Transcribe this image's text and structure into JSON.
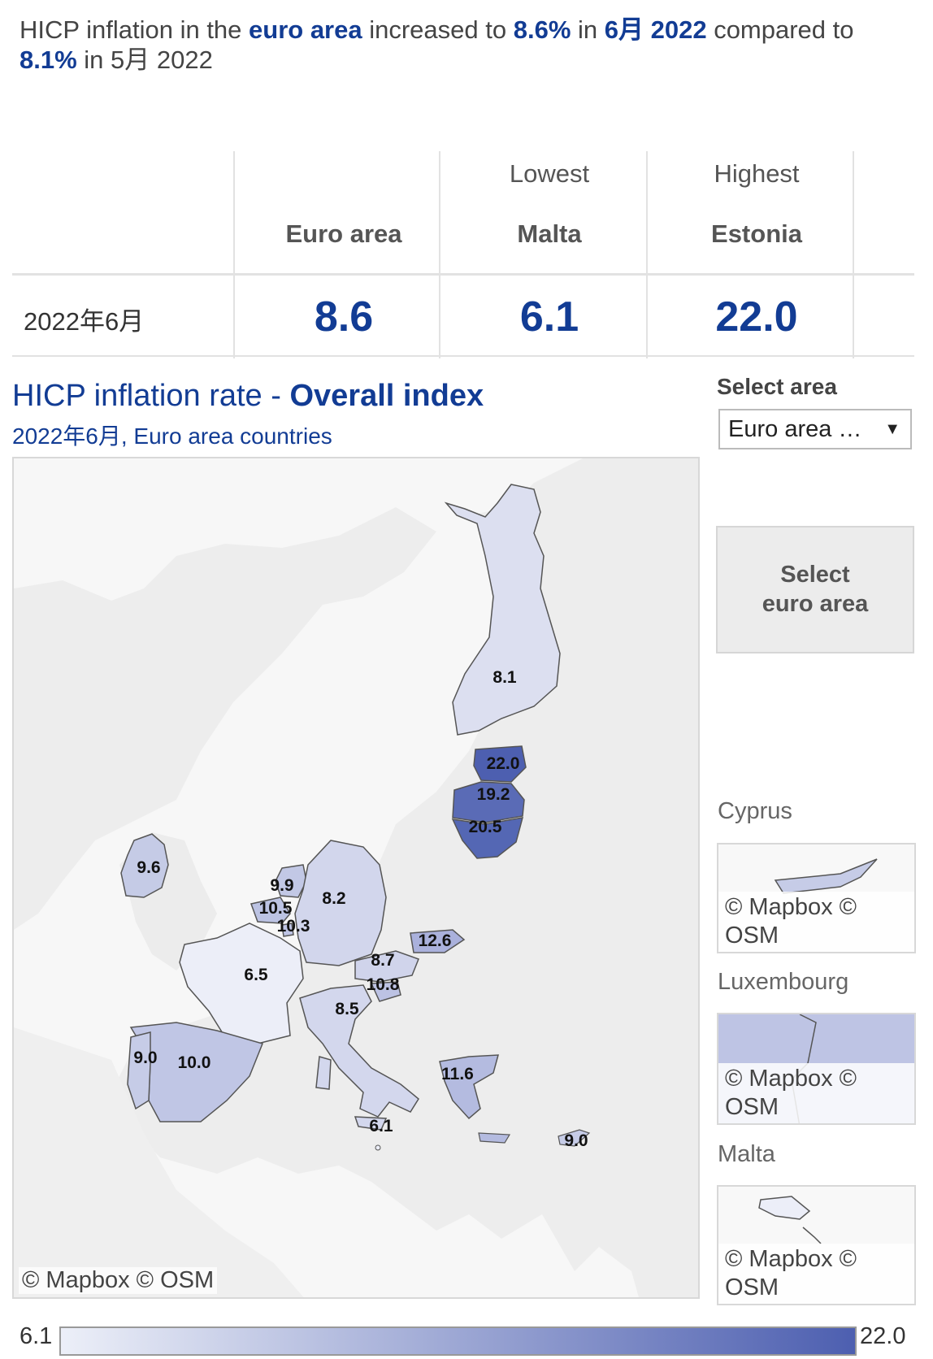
{
  "headline": {
    "p1": "HICP inflation in the ",
    "area": "euro area",
    "p2": "  increased to ",
    "rate": "8.6%",
    "p3": " in ",
    "month": "6月 2022",
    "p4": " compared to ",
    "prev_rate": "8.1%",
    "p5": " in 5月 2022"
  },
  "summary": {
    "period": "2022年6月",
    "columns": [
      {
        "caption": "",
        "name": "Euro area",
        "value": "8.6"
      },
      {
        "caption": "Lowest",
        "name": "Malta",
        "value": "6.1"
      },
      {
        "caption": "Highest",
        "name": "Estonia",
        "value": "22.0"
      }
    ]
  },
  "chart": {
    "title_plain": "HICP inflation rate - ",
    "title_bold": "Overall index",
    "subtitle": "2022年6月, Euro area countries"
  },
  "controls": {
    "select_label": "Select area",
    "select_value": "Euro area …",
    "select_arrow": "▼",
    "button_line1": "Select",
    "button_line2": "euro area"
  },
  "map_data": {
    "type": "choropleth",
    "color_min": "#eceff8",
    "color_max": "#4d5fb0",
    "legend_min": "6.1",
    "legend_max": "22.0",
    "values": [
      {
        "country": "Finland",
        "value": "8.1"
      },
      {
        "country": "Estonia",
        "value": "22.0"
      },
      {
        "country": "Latvia",
        "value": "19.2"
      },
      {
        "country": "Lithuania",
        "value": "20.5"
      },
      {
        "country": "Ireland",
        "value": "9.6"
      },
      {
        "country": "Netherlands",
        "value": "9.9"
      },
      {
        "country": "Belgium",
        "value": "10.5"
      },
      {
        "country": "Luxembourg",
        "value": "10.3"
      },
      {
        "country": "Germany",
        "value": "8.2"
      },
      {
        "country": "France",
        "value": "6.5"
      },
      {
        "country": "Slovakia",
        "value": "12.6"
      },
      {
        "country": "Austria",
        "value": "8.7"
      },
      {
        "country": "Slovenia",
        "value": "10.8"
      },
      {
        "country": "Italy",
        "value": "8.5"
      },
      {
        "country": "Portugal",
        "value": "9.0"
      },
      {
        "country": "Spain",
        "value": "10.0"
      },
      {
        "country": "Greece",
        "value": "11.6"
      },
      {
        "country": "Malta",
        "value": "6.1"
      },
      {
        "country": "Cyprus",
        "value": "9.0"
      }
    ]
  },
  "insets": [
    {
      "title": "Cyprus",
      "attribution": "© Mapbox © OSM"
    },
    {
      "title": "Luxembourg",
      "attribution": "© Mapbox © OSM"
    },
    {
      "title": "Malta",
      "attribution": "© Mapbox © OSM"
    }
  ],
  "map_attribution": "© Mapbox  © OSM"
}
